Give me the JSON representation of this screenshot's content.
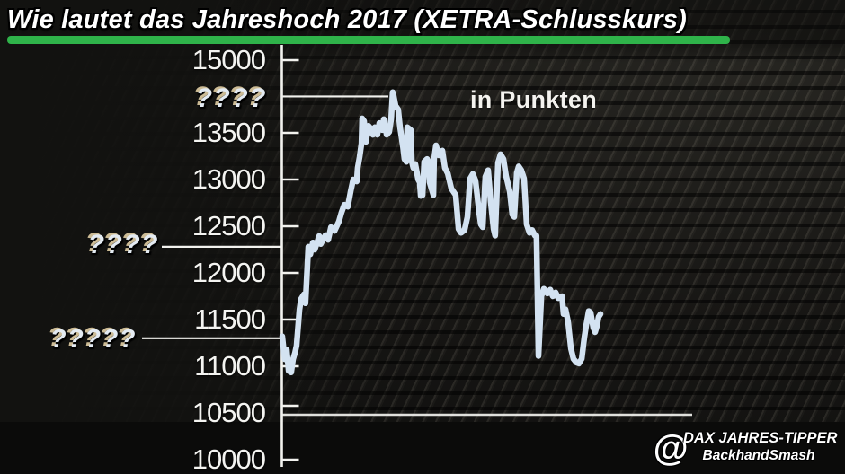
{
  "title": {
    "text": "Wie lautet das Jahreshoch 2017 (XETRA-Schlusskurs)"
  },
  "colors": {
    "underline_green": "#2fb34a",
    "line_blue": "#d3e2f1",
    "axis_white": "#f2f2ee",
    "background": "#141412"
  },
  "watermark": {
    "at_symbol": "@",
    "line1": "DAX JAHRES-TIPPER",
    "line2": "BackhandSmash"
  },
  "chart_data": {
    "type": "line",
    "unit_label": "in Punkten",
    "x_axis": {
      "tick_labels_visible": false
    },
    "y_axis": {
      "tick_labels": [
        "15000",
        "13500",
        "13000",
        "12500",
        "12000",
        "11500",
        "11000",
        "10500",
        "10000"
      ],
      "range": [
        10000,
        15000
      ]
    },
    "annotations": [
      {
        "label": "????",
        "approx_value": 13890,
        "position": "high-line-right-of-axis"
      },
      {
        "label": "????",
        "approx_value": 12280,
        "position": "mid-line-left-of-axis"
      },
      {
        "label": "?????",
        "approx_value": 11300,
        "position": "low-line-left-of-axis"
      }
    ],
    "series": [
      {
        "name": "DAX",
        "points": [
          [
            0.0,
            11320
          ],
          [
            0.008,
            11075
          ],
          [
            0.014,
            11175
          ],
          [
            0.02,
            10950
          ],
          [
            0.028,
            10935
          ],
          [
            0.034,
            11075
          ],
          [
            0.04,
            11145
          ],
          [
            0.045,
            11220
          ],
          [
            0.054,
            11605
          ],
          [
            0.059,
            11720
          ],
          [
            0.068,
            11770
          ],
          [
            0.073,
            11675
          ],
          [
            0.082,
            12280
          ],
          [
            0.088,
            12200
          ],
          [
            0.096,
            12325
          ],
          [
            0.102,
            12250
          ],
          [
            0.116,
            12395
          ],
          [
            0.121,
            12310
          ],
          [
            0.136,
            12405
          ],
          [
            0.144,
            12355
          ],
          [
            0.153,
            12490
          ],
          [
            0.164,
            12450
          ],
          [
            0.178,
            12550
          ],
          [
            0.186,
            12645
          ],
          [
            0.195,
            12730
          ],
          [
            0.206,
            12710
          ],
          [
            0.215,
            12875
          ],
          [
            0.223,
            13000
          ],
          [
            0.234,
            12980
          ],
          [
            0.237,
            13125
          ],
          [
            0.243,
            13240
          ],
          [
            0.249,
            13385
          ],
          [
            0.251,
            13655
          ],
          [
            0.257,
            13625
          ],
          [
            0.263,
            13405
          ],
          [
            0.271,
            13575
          ],
          [
            0.277,
            13550
          ],
          [
            0.285,
            13480
          ],
          [
            0.291,
            13560
          ],
          [
            0.299,
            13480
          ],
          [
            0.305,
            13605
          ],
          [
            0.314,
            13530
          ],
          [
            0.319,
            13645
          ],
          [
            0.328,
            13480
          ],
          [
            0.336,
            13510
          ],
          [
            0.342,
            13645
          ],
          [
            0.347,
            13935
          ],
          [
            0.35,
            13895
          ],
          [
            0.356,
            13790
          ],
          [
            0.364,
            13750
          ],
          [
            0.37,
            13560
          ],
          [
            0.379,
            13355
          ],
          [
            0.384,
            13220
          ],
          [
            0.39,
            13190
          ],
          [
            0.393,
            13560
          ],
          [
            0.404,
            13530
          ],
          [
            0.407,
            13190
          ],
          [
            0.412,
            13125
          ],
          [
            0.418,
            13165
          ],
          [
            0.427,
            13000
          ],
          [
            0.432,
            12970
          ],
          [
            0.435,
            12825
          ],
          [
            0.441,
            12835
          ],
          [
            0.446,
            13190
          ],
          [
            0.455,
            13220
          ],
          [
            0.46,
            13190
          ],
          [
            0.463,
            12970
          ],
          [
            0.475,
            12835
          ],
          [
            0.477,
            13220
          ],
          [
            0.483,
            13365
          ],
          [
            0.492,
            13260
          ],
          [
            0.503,
            13310
          ],
          [
            0.511,
            13125
          ],
          [
            0.52,
            13065
          ],
          [
            0.531,
            12905
          ],
          [
            0.545,
            12835
          ],
          [
            0.554,
            12470
          ],
          [
            0.562,
            12430
          ],
          [
            0.573,
            12460
          ],
          [
            0.582,
            12600
          ],
          [
            0.59,
            13010
          ],
          [
            0.599,
            13060
          ],
          [
            0.607,
            12990
          ],
          [
            0.619,
            12640
          ],
          [
            0.624,
            12520
          ],
          [
            0.63,
            12490
          ],
          [
            0.638,
            13030
          ],
          [
            0.647,
            13100
          ],
          [
            0.655,
            12760
          ],
          [
            0.664,
            12470
          ],
          [
            0.669,
            12400
          ],
          [
            0.678,
            13180
          ],
          [
            0.686,
            13270
          ],
          [
            0.695,
            13220
          ],
          [
            0.703,
            13040
          ],
          [
            0.715,
            12870
          ],
          [
            0.723,
            12625
          ],
          [
            0.729,
            12600
          ],
          [
            0.737,
            13070
          ],
          [
            0.743,
            13140
          ],
          [
            0.751,
            13100
          ],
          [
            0.76,
            13010
          ],
          [
            0.768,
            12520
          ],
          [
            0.777,
            12430
          ],
          [
            0.785,
            12460
          ],
          [
            0.794,
            12400
          ],
          [
            0.799,
            12400
          ],
          [
            0.805,
            11110
          ],
          [
            0.814,
            11750
          ],
          [
            0.822,
            11830
          ],
          [
            0.833,
            11780
          ],
          [
            0.842,
            11820
          ],
          [
            0.85,
            11750
          ],
          [
            0.859,
            11790
          ],
          [
            0.867,
            11730
          ],
          [
            0.879,
            11750
          ],
          [
            0.884,
            11560
          ],
          [
            0.89,
            11610
          ],
          [
            0.898,
            11480
          ],
          [
            0.907,
            11190
          ],
          [
            0.915,
            11080
          ],
          [
            0.924,
            11040
          ],
          [
            0.932,
            11030
          ],
          [
            0.941,
            11080
          ],
          [
            0.949,
            11300
          ],
          [
            0.955,
            11440
          ],
          [
            0.963,
            11590
          ],
          [
            0.969,
            11575
          ],
          [
            0.977,
            11415
          ],
          [
            0.983,
            11365
          ],
          [
            0.989,
            11435
          ],
          [
            0.994,
            11530
          ],
          [
            1.0,
            11560
          ]
        ]
      }
    ]
  }
}
